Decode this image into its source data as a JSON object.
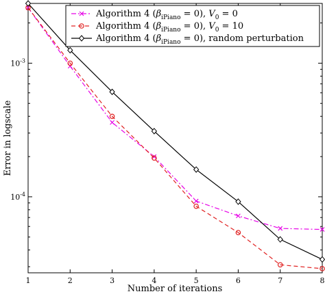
{
  "chart_data": {
    "type": "line",
    "title": "",
    "xlabel": "Number of iterations",
    "ylabel": "Error in logscale",
    "x": [
      1,
      2,
      3,
      4,
      5,
      6,
      7,
      8
    ],
    "xlim": [
      1,
      8
    ],
    "ylim": [
      2.7e-05,
      0.0028
    ],
    "y_scale": "log",
    "x_ticks": [
      "1",
      "2",
      "3",
      "4",
      "5",
      "6",
      "7",
      "8"
    ],
    "y_ticks": [
      {
        "value": 0.001,
        "base": "10",
        "exp": "-3"
      },
      {
        "value": 0.0001,
        "base": "10",
        "exp": "-4"
      }
    ],
    "grid": false,
    "legend_position": "top-right",
    "series": [
      {
        "name_parts": {
          "pre": "Algorithm 4 (",
          "sym": "β",
          "sub": "iPiano",
          "mid": " = 0), ",
          "post": "V",
          "post_sub": "0",
          "tail": " = 0"
        },
        "values": [
          0.0026,
          0.00095,
          0.00036,
          0.0002,
          9.3e-05,
          7.2e-05,
          5.8e-05,
          5.7e-05
        ],
        "color": "#e600e6",
        "dash": "dash-dot",
        "marker": "x"
      },
      {
        "name_parts": {
          "pre": "Algorithm 4 (",
          "sym": "β",
          "sub": "iPiano",
          "mid": " = 0), ",
          "post": "V",
          "post_sub": "0",
          "tail": " = 10"
        },
        "values": [
          0.0026,
          0.001,
          0.0004,
          0.000195,
          8.5e-05,
          5.4e-05,
          3.1e-05,
          2.9e-05
        ],
        "color": "#e02020",
        "dash": "dashed",
        "marker": "circle"
      },
      {
        "name_parts": {
          "pre": "Algorithm 4 (",
          "sym": "β",
          "sub": "iPiano",
          "mid": " = 0), ",
          "post": "",
          "post_sub": "",
          "tail": "random perturbation"
        },
        "values": [
          0.0028,
          0.00125,
          0.00061,
          0.00031,
          0.00016,
          9.2e-05,
          4.8e-05,
          3.4e-05
        ],
        "color": "#000000",
        "dash": "solid",
        "marker": "diamond"
      }
    ]
  }
}
